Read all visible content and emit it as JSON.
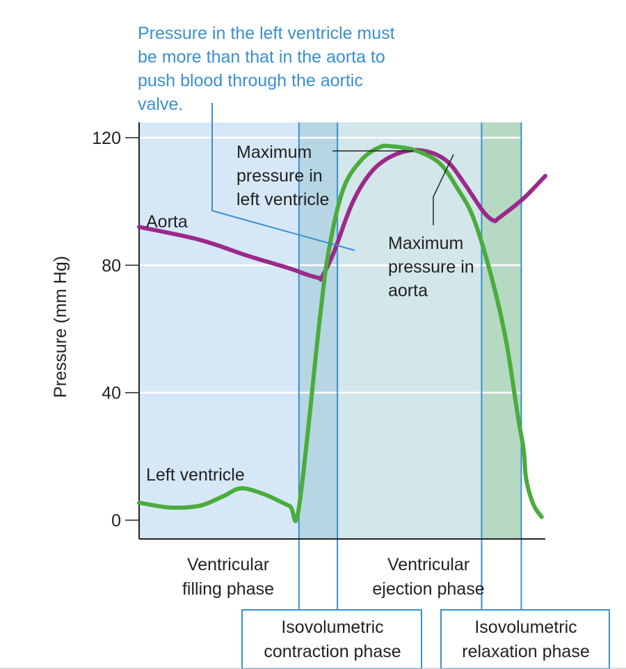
{
  "chart_data": {
    "type": "line",
    "title": "",
    "xlabel": "",
    "ylabel": "Pressure (mm Hg)",
    "ylim": [
      0,
      120
    ],
    "yticks": [
      "0",
      "40",
      "80",
      "120"
    ],
    "grid": true,
    "series": [
      {
        "name": "Aorta",
        "color": "#9b2a8a",
        "points": [
          [
            0,
            92
          ],
          [
            0.5,
            88
          ],
          [
            0.9,
            83
          ],
          [
            1.25,
            79
          ],
          [
            1.4,
            77
          ],
          [
            1.5,
            76
          ],
          [
            1.52,
            76.2
          ],
          [
            1.62,
            84
          ],
          [
            1.78,
            100
          ],
          [
            1.95,
            110
          ],
          [
            2.15,
            115
          ],
          [
            2.35,
            116
          ],
          [
            2.55,
            113
          ],
          [
            2.7,
            106
          ],
          [
            2.86,
            97
          ],
          [
            2.95,
            94
          ],
          [
            3.0,
            95
          ],
          [
            3.2,
            101
          ],
          [
            3.38,
            108
          ]
        ]
      },
      {
        "name": "Left ventricle",
        "color": "#4aac3c",
        "points": [
          [
            0,
            5.5
          ],
          [
            0.25,
            4
          ],
          [
            0.5,
            4.5
          ],
          [
            0.7,
            7.5
          ],
          [
            0.85,
            10
          ],
          [
            1.05,
            8
          ],
          [
            1.25,
            4.5
          ],
          [
            1.33,
            4
          ],
          [
            1.5,
            62
          ],
          [
            1.58,
            85
          ],
          [
            1.7,
            104
          ],
          [
            1.85,
            113
          ],
          [
            2.0,
            117
          ],
          [
            2.1,
            117.3
          ],
          [
            2.3,
            116
          ],
          [
            2.5,
            112
          ],
          [
            2.65,
            104
          ],
          [
            2.78,
            95
          ],
          [
            2.92,
            78
          ],
          [
            3.05,
            57
          ],
          [
            3.15,
            33
          ],
          [
            3.2,
            22
          ],
          [
            3.22,
            13
          ],
          [
            3.28,
            5
          ],
          [
            3.35,
            1
          ]
        ]
      }
    ],
    "phases": [
      {
        "name": "Ventricular filling phase",
        "line1": "Ventricular",
        "line2": "filling phase",
        "start": 0,
        "end": 1.33,
        "color": "#d6e8f7"
      },
      {
        "name": "Isovolumetric contraction phase",
        "line1": "Isovolumetric",
        "line2": "contraction phase",
        "start": 1.33,
        "end": 1.65,
        "color": "#b6d6e3"
      },
      {
        "name": "Ventricular ejection phase",
        "line1": "Ventricular",
        "line2": "ejection phase",
        "start": 1.65,
        "end": 2.85,
        "color": "#d3e6ea"
      },
      {
        "name": "Isovolumetric relaxation phase",
        "line1": "Isovolumetric",
        "line2": "relaxation phase",
        "start": 2.85,
        "end": 3.18,
        "color": "#b6d9c4"
      }
    ],
    "series_labels": {
      "aorta": "Aorta",
      "left_ventricle": "Left ventricle"
    },
    "annotations": {
      "aortic_valve_note": [
        "Pressure in the left ventricle must",
        "be more than that in the aorta to",
        "push blood through the aortic",
        "valve."
      ],
      "max_lv": [
        "Maximum",
        "pressure in",
        "left ventricle"
      ],
      "max_aorta": [
        "Maximum",
        "pressure in",
        "aorta"
      ]
    }
  }
}
